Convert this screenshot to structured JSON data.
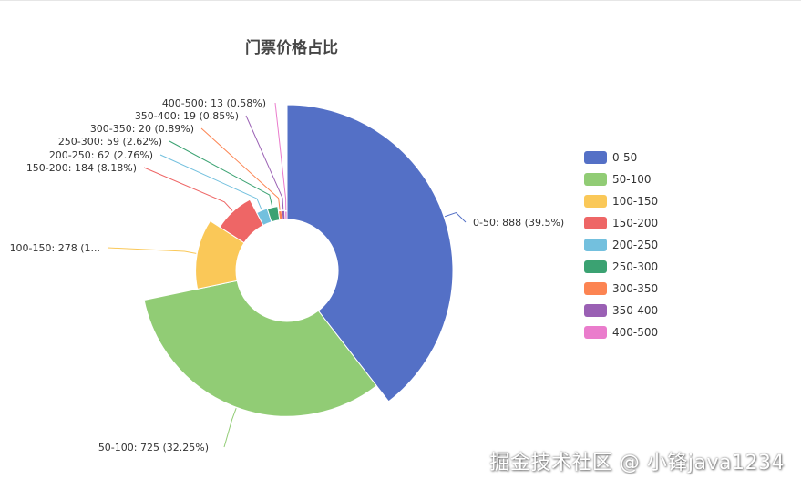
{
  "chart_data": {
    "type": "pie",
    "variant": "rose-donut",
    "title": "门票价格占比",
    "legend_position": "right",
    "slices": [
      {
        "name": "0-50",
        "value": 888,
        "percent": "39.5%",
        "color": "#5470c6",
        "label": "0-50: 888 (39.5%)"
      },
      {
        "name": "50-100",
        "value": 725,
        "percent": "32.25%",
        "color": "#91cc75",
        "label": "50-100: 725 (32.25%)"
      },
      {
        "name": "100-150",
        "value": 278,
        "percent": "12.37%",
        "color": "#fac858",
        "label": "100-150: 278 (1..."
      },
      {
        "name": "150-200",
        "value": 184,
        "percent": "8.18%",
        "color": "#ee6666",
        "label": "150-200: 184 (8.18%)"
      },
      {
        "name": "200-250",
        "value": 62,
        "percent": "2.76%",
        "color": "#73c0de",
        "label": "200-250: 62 (2.76%)"
      },
      {
        "name": "250-300",
        "value": 59,
        "percent": "2.62%",
        "color": "#3ba272",
        "label": "250-300: 59 (2.62%)"
      },
      {
        "name": "300-350",
        "value": 20,
        "percent": "0.89%",
        "color": "#fc8452",
        "label": "300-350: 20 (0.89%)"
      },
      {
        "name": "350-400",
        "value": 19,
        "percent": "0.85%",
        "color": "#9a60b4",
        "label": "350-400: 19 (0.85%)"
      },
      {
        "name": "400-500",
        "value": 13,
        "percent": "0.58%",
        "color": "#ea7ccc",
        "label": "400-500: 13 (0.58%)"
      }
    ]
  },
  "watermark": "掘金技术社区 @ 小锋java1234"
}
